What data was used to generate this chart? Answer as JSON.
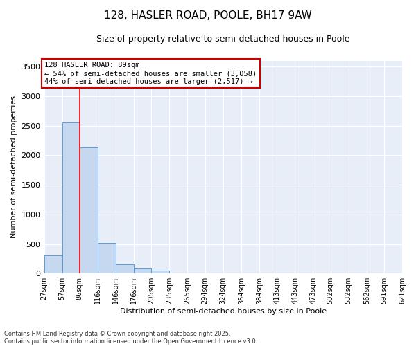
{
  "title": "128, HASLER ROAD, POOLE, BH17 9AW",
  "subtitle": "Size of property relative to semi-detached houses in Poole",
  "xlabel": "Distribution of semi-detached houses by size in Poole",
  "ylabel": "Number of semi-detached properties",
  "bar_values": [
    310,
    2550,
    2130,
    520,
    155,
    80,
    50,
    5,
    2,
    1,
    0,
    0,
    0,
    0,
    0,
    0,
    0,
    0,
    0,
    0
  ],
  "bin_edges": [
    27,
    57,
    86,
    116,
    146,
    176,
    205,
    235,
    265,
    294,
    324,
    354,
    384,
    413,
    443,
    473,
    502,
    532,
    562,
    591,
    621
  ],
  "bin_labels": [
    "27sqm",
    "57sqm",
    "86sqm",
    "116sqm",
    "146sqm",
    "176sqm",
    "205sqm",
    "235sqm",
    "265sqm",
    "294sqm",
    "324sqm",
    "354sqm",
    "384sqm",
    "413sqm",
    "443sqm",
    "473sqm",
    "502sqm",
    "532sqm",
    "562sqm",
    "591sqm",
    "621sqm"
  ],
  "bar_color": "#c5d8f0",
  "bar_edge_color": "#5b9bd5",
  "red_line_x": 86,
  "ylim": [
    0,
    3600
  ],
  "yticks": [
    0,
    500,
    1000,
    1500,
    2000,
    2500,
    3000,
    3500
  ],
  "annotation_title": "128 HASLER ROAD: 89sqm",
  "annotation_line1": "← 54% of semi-detached houses are smaller (3,058)",
  "annotation_line2": "44% of semi-detached houses are larger (2,517) →",
  "footer_line1": "Contains HM Land Registry data © Crown copyright and database right 2025.",
  "footer_line2": "Contains public sector information licensed under the Open Government Licence v3.0.",
  "background_color": "#e8eef8",
  "grid_color": "#ffffff",
  "annotation_box_color": "#ffffff",
  "annotation_box_edge_color": "#cc0000",
  "title_fontsize": 11,
  "subtitle_fontsize": 9,
  "ylabel_fontsize": 8,
  "xlabel_fontsize": 8,
  "tick_fontsize": 8,
  "footer_fontsize": 6
}
